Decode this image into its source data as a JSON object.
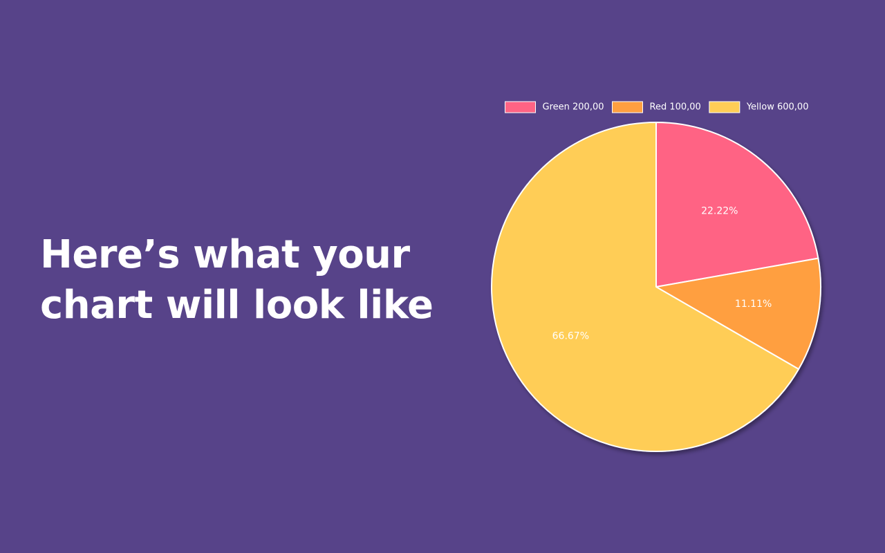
{
  "headline": {
    "line1": "Here’s what your",
    "line2": "chart will look like"
  },
  "colors": {
    "background": "#574389",
    "text": "#ffffff",
    "slice_border": "#ffffff"
  },
  "chart_data": {
    "type": "pie",
    "legend_position": "top",
    "slices": [
      {
        "name": "Green",
        "value": 200,
        "legend_label": "Green 200,00",
        "percent_label": "22.22%",
        "color": "#FF6384"
      },
      {
        "name": "Red",
        "value": 100,
        "legend_label": "Red 100,00",
        "percent_label": "11.11%",
        "color": "#FF9F40"
      },
      {
        "name": "Yellow",
        "value": 600,
        "legend_label": "Yellow 600,00",
        "percent_label": "66.67%",
        "color": "#FFCD56"
      }
    ]
  }
}
